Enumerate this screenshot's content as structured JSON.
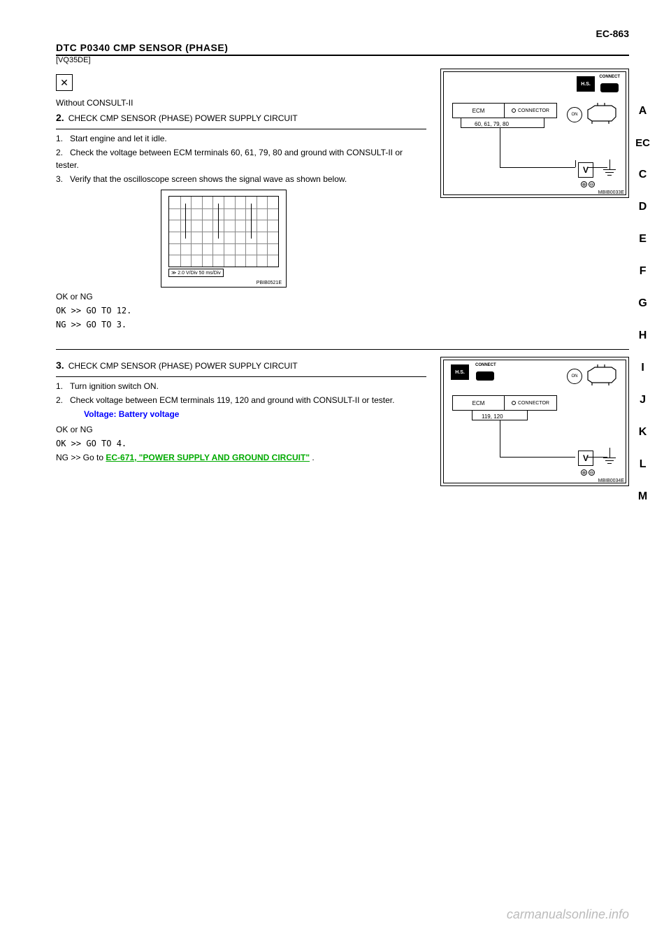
{
  "header": {
    "dtc": "DTC P0340 CMP SENSOR (PHASE)",
    "section_small": "[VQ35DE]",
    "page_num": "EC-863"
  },
  "side_tabs": [
    "A",
    "EC",
    "C",
    "D",
    "E",
    "F",
    "G",
    "H",
    "I",
    "J",
    "K",
    "L",
    "M"
  ],
  "step2": {
    "title_without": "Without CONSULT-II",
    "num": "2.",
    "label": "CHECK CMP SENSOR (PHASE) POWER SUPPLY CIRCUIT",
    "lines": [
      "Start engine and let it idle.",
      "Check the voltage between ECM terminals 60, 61, 79, 80 and ground with CONSULT-II or tester.",
      "Verify that the oscilloscope screen shows the signal wave as shown below."
    ],
    "ok_q": "OK or NG",
    "ok": "OK >> GO TO 12.",
    "ng": "NG >> GO TO 3."
  },
  "diagram1": {
    "ecm_left": "ECM",
    "ecm_right": "CONNECTOR",
    "pins": "60, 61, 79, 80",
    "volt": "V",
    "connect": "CONNECT",
    "hs": "H.S.",
    "on": "ON",
    "caption": "MBIB0033E"
  },
  "scope": {
    "scale": "2.0 V/Div    50 ms/Div",
    "caption": "PBIB0521E",
    "pulse_positions_pct": [
      15,
      45,
      75
    ]
  },
  "step3": {
    "num": "3.",
    "label": "CHECK CMP SENSOR (PHASE) POWER SUPPLY CIRCUIT",
    "lines": [
      "Turn ignition switch ON.",
      "Check voltage between ECM terminals 119, 120 and ground with CONSULT-II or tester."
    ],
    "voltage": "Voltage: Battery voltage",
    "ok_q": "OK or NG",
    "ok": "OK >> GO TO 4.",
    "ng_prefix": "NG >> Go to ",
    "ng_link": "EC-671, \"POWER SUPPLY AND GROUND CIRCUIT\"",
    "ng_suffix": " ."
  },
  "diagram2": {
    "ecm_left": "ECM",
    "ecm_right": "CONNECTOR",
    "pins": "119, 120",
    "volt": "V",
    "connect": "CONNECT",
    "hs": "H.S.",
    "on": "ON",
    "caption": "MBIB0034E"
  },
  "watermark": "carmanualsonline.info"
}
